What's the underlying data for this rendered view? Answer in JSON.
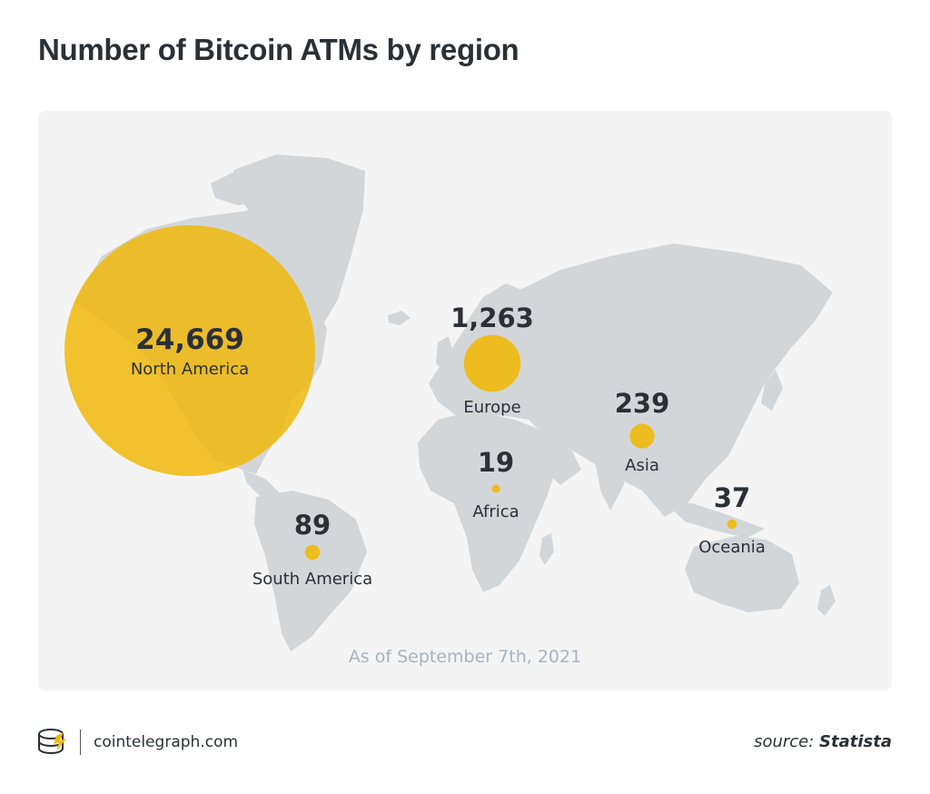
{
  "title": "Number of Bitcoin ATMs by region",
  "as_of": "As of September 7th, 2021",
  "footer": {
    "site": "cointelegraph.com",
    "source_prefix": "source:",
    "source_name": "Statista"
  },
  "colors": {
    "bubble": "#f0b90b",
    "land": "#d3d6d9",
    "card": "#f4f4f4",
    "text": "#2b3035"
  },
  "chart_data": {
    "type": "bubble-map",
    "title": "Number of Bitcoin ATMs by region",
    "regions": [
      {
        "name": "North America",
        "value_label": "24,669",
        "value": 24669
      },
      {
        "name": "Europe",
        "value_label": "1,263",
        "value": 1263
      },
      {
        "name": "Asia",
        "value_label": "239",
        "value": 239
      },
      {
        "name": "South America",
        "value_label": "89",
        "value": 89
      },
      {
        "name": "Oceania",
        "value_label": "37",
        "value": 37
      },
      {
        "name": "Africa",
        "value_label": "19",
        "value": 19
      }
    ]
  }
}
